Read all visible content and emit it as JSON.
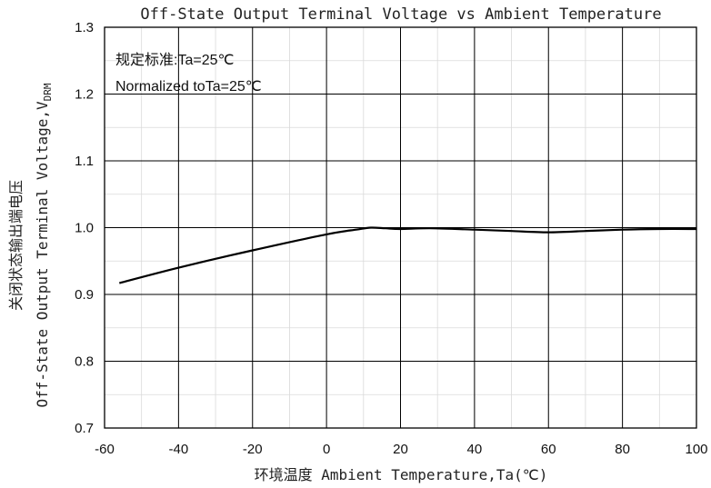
{
  "chart_data": {
    "type": "line",
    "title": "Off-State Output Terminal Voltage vs Ambient Temperature",
    "xlabel": "环境温度 Ambient Temperature,Ta(℃)",
    "ylabel_cn": "关闭状态输出端电压",
    "ylabel_en": "Off-State Output Terminal Voltage,V",
    "ylabel_sub": "DRM",
    "annotations": [
      "规定标准:Ta=25℃",
      "Normalized toTa=25℃"
    ],
    "xlim": [
      -60,
      100
    ],
    "ylim": [
      0.7,
      1.3
    ],
    "x_ticks": [
      -60,
      -40,
      -20,
      0,
      20,
      40,
      60,
      80,
      100
    ],
    "x_tick_labels": [
      "-60",
      "-40",
      "-20",
      "0",
      "20",
      "40",
      "60",
      "80",
      "100"
    ],
    "y_ticks": [
      0.7,
      0.8,
      0.9,
      1.0,
      1.1,
      1.2,
      1.3
    ],
    "y_tick_labels": [
      "0.7",
      "0.8",
      "0.9",
      "1.0",
      "1.1",
      "1.2",
      "1.3"
    ],
    "grid": true,
    "series": [
      {
        "color": "#000000",
        "x": [
          -56,
          -40,
          -20,
          0,
          8,
          12,
          16,
          20,
          28,
          40,
          50,
          60,
          70,
          80,
          90,
          100
        ],
        "y": [
          0.917,
          0.94,
          0.966,
          0.99,
          0.997,
          1.0,
          0.999,
          0.998,
          0.999,
          0.997,
          0.995,
          0.993,
          0.995,
          0.997,
          0.998,
          0.998
        ]
      }
    ]
  }
}
